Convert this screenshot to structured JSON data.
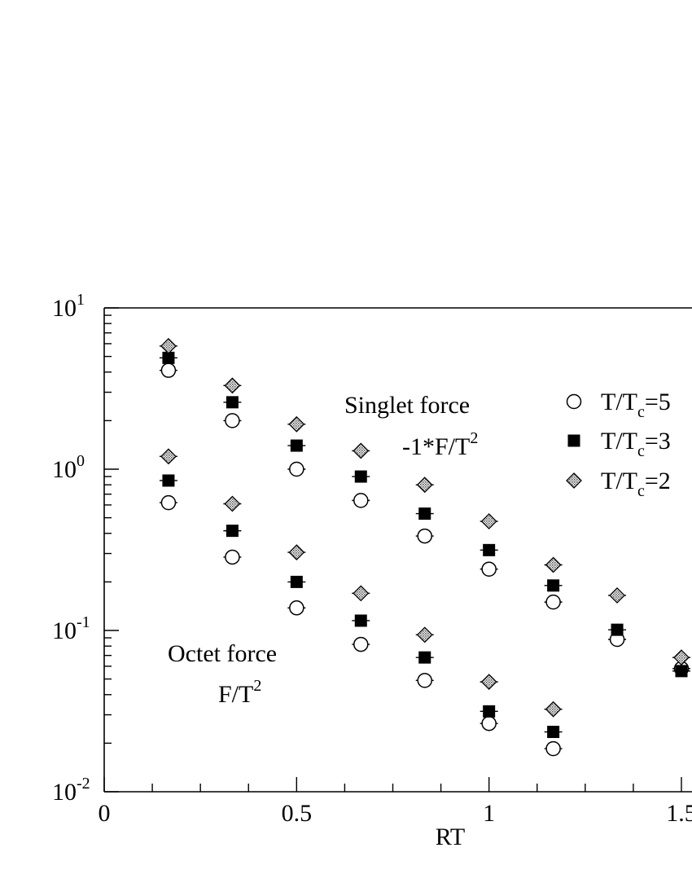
{
  "chart_data": {
    "type": "scatter",
    "x_label": "RT",
    "x_range": [
      0,
      1.5
    ],
    "y_scale": "log",
    "y_range": [
      0.01,
      10
    ],
    "x_ticks": [
      {
        "value": 0,
        "label": "0"
      },
      {
        "value": 0.5,
        "label": "0.5"
      },
      {
        "value": 1,
        "label": "1"
      },
      {
        "value": 1.5,
        "label": "1.5"
      }
    ],
    "y_ticks": [
      {
        "value": 0.01,
        "base": "10",
        "exp": "-2"
      },
      {
        "value": 0.1,
        "base": "10",
        "exp": "-1"
      },
      {
        "value": 1,
        "base": "10",
        "exp": "0"
      },
      {
        "value": 10,
        "base": "10",
        "exp": "1"
      }
    ],
    "annotations": {
      "singlet_title": "Singlet force",
      "singlet_formula": "-1*F/T",
      "singlet_formula_exp": "2",
      "octet_title": "Octet force",
      "octet_formula": "F/T",
      "octet_formula_exp": "2"
    },
    "legend_position": "top-right",
    "series": [
      {
        "name": "T/Tc=5",
        "legend_base": "T/T",
        "legend_sub": "c",
        "legend_tail": "=5",
        "marker": "circle-open",
        "singlet": [
          [
            0.167,
            4.1
          ],
          [
            0.333,
            2.0
          ],
          [
            0.5,
            1.0
          ],
          [
            0.667,
            0.64
          ],
          [
            0.833,
            0.385
          ],
          [
            1.0,
            0.24
          ],
          [
            1.167,
            0.15
          ],
          [
            1.333,
            0.088
          ],
          [
            1.5,
            0.058
          ]
        ],
        "octet": [
          [
            0.167,
            0.62
          ],
          [
            0.333,
            0.285
          ],
          [
            0.5,
            0.138
          ],
          [
            0.667,
            0.082
          ],
          [
            0.833,
            0.049
          ],
          [
            1.0,
            0.0265
          ],
          [
            1.167,
            0.0185
          ]
        ]
      },
      {
        "name": "T/Tc=3",
        "legend_base": "T/T",
        "legend_sub": "c",
        "legend_tail": "=3",
        "marker": "square-filled",
        "singlet": [
          [
            0.167,
            4.9
          ],
          [
            0.333,
            2.6
          ],
          [
            0.5,
            1.4
          ],
          [
            0.667,
            0.9
          ],
          [
            0.833,
            0.53
          ],
          [
            1.0,
            0.315
          ],
          [
            1.167,
            0.19
          ],
          [
            1.333,
            0.101
          ],
          [
            1.5,
            0.056
          ]
        ],
        "octet": [
          [
            0.167,
            0.85
          ],
          [
            0.333,
            0.415
          ],
          [
            0.5,
            0.2
          ],
          [
            0.667,
            0.115
          ],
          [
            0.833,
            0.068
          ],
          [
            1.0,
            0.0315
          ],
          [
            1.167,
            0.0235
          ]
        ]
      },
      {
        "name": "T/Tc=2",
        "legend_base": "T/T",
        "legend_sub": "c",
        "legend_tail": "=2",
        "marker": "diamond-hatched",
        "singlet": [
          [
            0.167,
            5.8
          ],
          [
            0.333,
            3.3
          ],
          [
            0.5,
            1.9
          ],
          [
            0.667,
            1.3
          ],
          [
            0.833,
            0.8
          ],
          [
            1.0,
            0.475
          ],
          [
            1.167,
            0.255
          ],
          [
            1.333,
            0.165
          ],
          [
            1.5,
            0.068
          ]
        ],
        "octet": [
          [
            0.167,
            1.2
          ],
          [
            0.333,
            0.61
          ],
          [
            0.5,
            0.305
          ],
          [
            0.667,
            0.17
          ],
          [
            0.833,
            0.094
          ],
          [
            1.0,
            0.048
          ],
          [
            1.167,
            0.0325
          ]
        ]
      }
    ]
  }
}
